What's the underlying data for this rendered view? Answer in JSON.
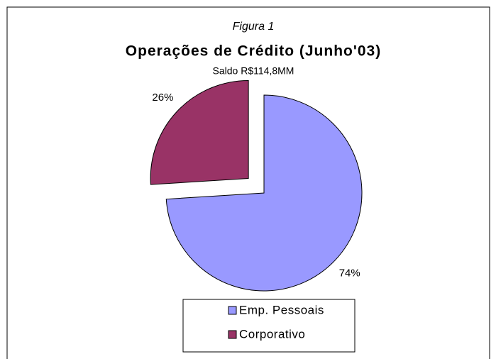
{
  "chart_data": {
    "type": "pie",
    "figure_label": "Figura 1",
    "title": "Operações de Crédito (Junho'03)",
    "subtitle": "Saldo R$114,8MM",
    "categories": [
      "Emp. Pessoais",
      "Corporativo"
    ],
    "values": [
      74,
      26
    ],
    "value_labels": [
      "74%",
      "26%"
    ],
    "colors": [
      "#9999ff",
      "#993366"
    ],
    "exploded": [
      false,
      true
    ],
    "legend": "bottom"
  }
}
